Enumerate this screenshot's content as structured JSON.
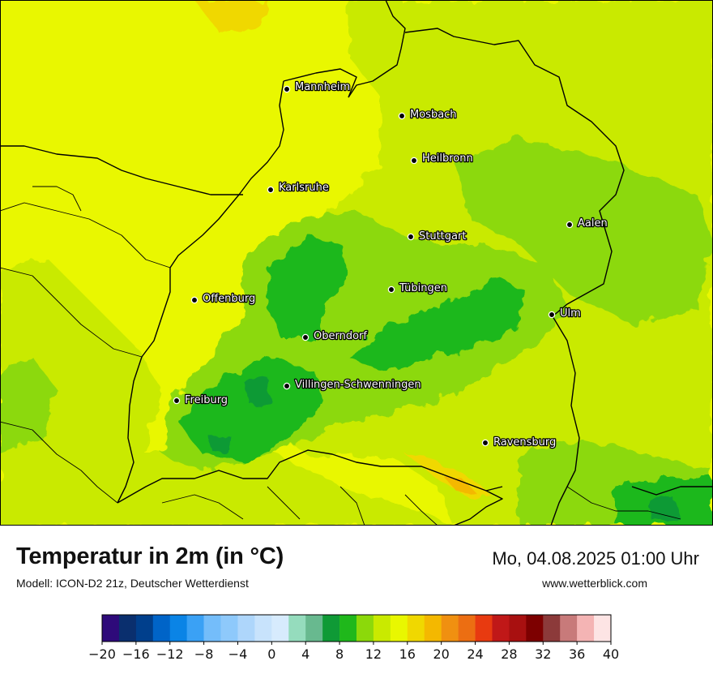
{
  "map": {
    "cities": [
      {
        "name": "Mannheim"
      },
      {
        "name": "Mosbach"
      },
      {
        "name": "Heilbronn"
      },
      {
        "name": "Karlsruhe"
      },
      {
        "name": "Aalen"
      },
      {
        "name": "Stuttgart"
      },
      {
        "name": "Tübingen"
      },
      {
        "name": "Offenburg"
      },
      {
        "name": "Ulm"
      },
      {
        "name": "Oberndorf"
      },
      {
        "name": "Villingen-Schwenningen"
      },
      {
        "name": "Freiburg"
      },
      {
        "name": "Ravensburg"
      }
    ]
  },
  "footer": {
    "title": "Temperatur in 2m (in °C)",
    "model": "Modell: ICON-D2 21z, Deutscher Wetterdienst",
    "datetime": "Mo, 04.08.2025 01:00 Uhr",
    "website": "www.wetterblick.com"
  },
  "legend": {
    "min": -20,
    "step": 2,
    "colors": [
      "#2e0a7a",
      "#0a2f6e",
      "#003f8c",
      "#0064c8",
      "#0a84e6",
      "#3aa1f5",
      "#74bdfa",
      "#8ec9fb",
      "#aed6fb",
      "#c8e3fc",
      "#d7ebfd",
      "#95dcbd",
      "#68b98f",
      "#0f9a36",
      "#1fb81b",
      "#8cd90a",
      "#c9ea00",
      "#e9f700",
      "#f0d800",
      "#f4b800",
      "#f09010",
      "#ec6e12",
      "#e83a10",
      "#c01818",
      "#a81010",
      "#7d0000",
      "#8c3a3a",
      "#c87a7a",
      "#f4b4b4",
      "#fde4e4"
    ],
    "tick_labels": [
      "−20",
      "−16",
      "−12",
      "−8",
      "−4",
      "0",
      "4",
      "8",
      "12",
      "16",
      "20",
      "24",
      "28",
      "32",
      "36",
      "40"
    ]
  }
}
